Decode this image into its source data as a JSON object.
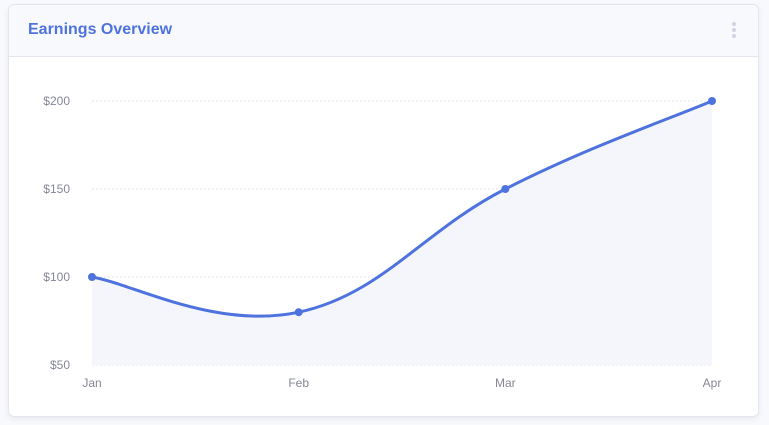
{
  "card": {
    "title": "Earnings Overview",
    "menu_icon": "ellipsis-vertical-icon"
  },
  "colors": {
    "accent": "#4e73df",
    "area_fill": "#f5f6fc",
    "grid": "#e3e6f0",
    "tick_text": "#858796"
  },
  "chart_data": {
    "type": "area",
    "title": "Earnings Overview",
    "xlabel": "",
    "ylabel": "",
    "categories": [
      "Jan",
      "Feb",
      "Mar",
      "Apr"
    ],
    "values": [
      100,
      80,
      150,
      200
    ],
    "ylim": [
      50,
      200
    ],
    "yticks": [
      50,
      100,
      150,
      200
    ],
    "ytick_labels": [
      "$50",
      "$100",
      "$150",
      "$200"
    ],
    "grid": true,
    "legend": "none"
  }
}
